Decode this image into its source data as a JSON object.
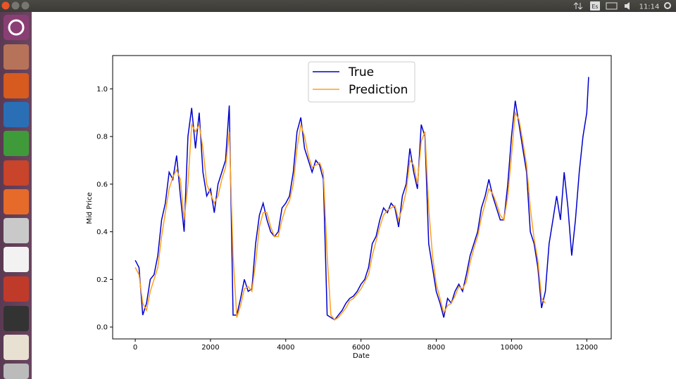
{
  "topbar": {
    "keyboard": "Es",
    "time": "11:14"
  },
  "chart_data": {
    "type": "line",
    "xlabel": "Date",
    "ylabel": "Mid Price",
    "x": [
      0,
      100,
      200,
      300,
      400,
      500,
      600,
      700,
      800,
      900,
      1000,
      1100,
      1200,
      1300,
      1400,
      1500,
      1600,
      1700,
      1800,
      1900,
      2000,
      2100,
      2200,
      2300,
      2400,
      2500,
      2600,
      2700,
      2800,
      2900,
      3000,
      3100,
      3200,
      3300,
      3400,
      3500,
      3600,
      3700,
      3800,
      3900,
      4000,
      4100,
      4200,
      4300,
      4400,
      4500,
      4600,
      4700,
      4800,
      4900,
      5000,
      5100,
      5200,
      5300,
      5400,
      5500,
      5600,
      5700,
      5800,
      5900,
      6000,
      6100,
      6200,
      6300,
      6400,
      6500,
      6600,
      6700,
      6800,
      6900,
      7000,
      7100,
      7200,
      7300,
      7400,
      7500,
      7600,
      7700,
      7800,
      7900,
      8000,
      8100,
      8200,
      8300,
      8400,
      8500,
      8600,
      8700,
      8800,
      8900,
      9000,
      9100,
      9200,
      9300,
      9400,
      9500,
      9600,
      9700,
      9800,
      9900,
      10000,
      10100,
      10200,
      10300,
      10400,
      10500,
      10600,
      10700,
      10800,
      10900,
      11000,
      11100,
      11200,
      11300,
      11400,
      11500,
      11600,
      11700,
      11800,
      11900,
      12000,
      12050
    ],
    "series": [
      {
        "name": "True",
        "color": "#0000cc",
        "values": [
          0.28,
          0.25,
          0.05,
          0.1,
          0.2,
          0.22,
          0.3,
          0.45,
          0.52,
          0.65,
          0.62,
          0.72,
          0.55,
          0.4,
          0.8,
          0.92,
          0.75,
          0.9,
          0.65,
          0.55,
          0.58,
          0.48,
          0.6,
          0.65,
          0.7,
          0.93,
          0.05,
          0.05,
          0.12,
          0.2,
          0.15,
          0.16,
          0.35,
          0.47,
          0.52,
          0.45,
          0.4,
          0.38,
          0.4,
          0.5,
          0.52,
          0.55,
          0.65,
          0.82,
          0.88,
          0.75,
          0.7,
          0.65,
          0.7,
          0.68,
          0.62,
          0.05,
          0.04,
          0.03,
          0.05,
          0.07,
          0.1,
          0.12,
          0.13,
          0.15,
          0.18,
          0.2,
          0.25,
          0.35,
          0.38,
          0.45,
          0.5,
          0.48,
          0.52,
          0.5,
          0.42,
          0.55,
          0.6,
          0.75,
          0.65,
          0.58,
          0.85,
          0.8,
          0.35,
          0.25,
          0.15,
          0.1,
          0.04,
          0.12,
          0.1,
          0.15,
          0.18,
          0.15,
          0.22,
          0.3,
          0.35,
          0.4,
          0.5,
          0.55,
          0.62,
          0.55,
          0.5,
          0.45,
          0.45,
          0.6,
          0.8,
          0.95,
          0.85,
          0.75,
          0.65,
          0.4,
          0.35,
          0.25,
          0.08,
          0.15,
          0.35,
          0.45,
          0.55,
          0.45,
          0.65,
          0.5,
          0.3,
          0.45,
          0.65,
          0.8,
          0.9,
          1.05
        ]
      },
      {
        "name": "Prediction",
        "color": "#ff9f1c",
        "values": [
          0.25,
          0.22,
          0.1,
          0.07,
          0.15,
          0.2,
          0.25,
          0.38,
          0.48,
          0.58,
          0.63,
          0.66,
          0.62,
          0.45,
          0.6,
          0.85,
          0.82,
          0.85,
          0.75,
          0.6,
          0.56,
          0.52,
          0.55,
          0.62,
          0.67,
          0.82,
          0.3,
          0.04,
          0.09,
          0.16,
          0.17,
          0.15,
          0.27,
          0.42,
          0.48,
          0.48,
          0.42,
          0.38,
          0.38,
          0.45,
          0.5,
          0.53,
          0.6,
          0.75,
          0.85,
          0.8,
          0.72,
          0.67,
          0.68,
          0.69,
          0.65,
          0.3,
          0.05,
          0.03,
          0.04,
          0.06,
          0.08,
          0.11,
          0.12,
          0.14,
          0.16,
          0.19,
          0.22,
          0.3,
          0.36,
          0.42,
          0.47,
          0.49,
          0.5,
          0.51,
          0.45,
          0.5,
          0.57,
          0.7,
          0.68,
          0.6,
          0.78,
          0.82,
          0.5,
          0.3,
          0.18,
          0.12,
          0.06,
          0.09,
          0.1,
          0.13,
          0.17,
          0.16,
          0.19,
          0.27,
          0.33,
          0.38,
          0.46,
          0.52,
          0.58,
          0.56,
          0.52,
          0.47,
          0.45,
          0.55,
          0.72,
          0.9,
          0.87,
          0.78,
          0.68,
          0.5,
          0.37,
          0.28,
          0.12,
          0.1,
          null,
          null,
          null,
          null,
          null,
          null,
          null,
          null,
          null,
          null,
          null,
          null
        ]
      }
    ],
    "xlim": [
      -600,
      12650
    ],
    "ylim": [
      -0.05,
      1.14
    ],
    "xticks": [
      0,
      2000,
      4000,
      6000,
      8000,
      10000,
      12000
    ],
    "yticks": [
      {
        "value": 0,
        "label": "0.0"
      },
      0.2,
      0.4,
      0.6,
      0.8,
      {
        "value": 1,
        "label": "1.0"
      }
    ],
    "grid": false,
    "legend": "upper center"
  }
}
